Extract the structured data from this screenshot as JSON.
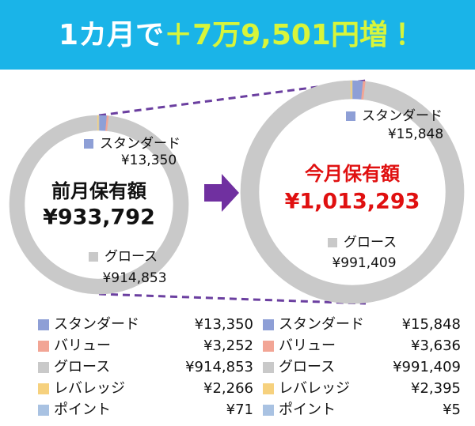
{
  "header": {
    "prefix": "1カ月で",
    "highlight": "＋7万9,501円増！"
  },
  "chart_data": [
    {
      "type": "donut",
      "title": "前月保有額",
      "total_label": "¥933,792",
      "categories": [
        "スタンダード",
        "バリュー",
        "グロース",
        "レバレッジ",
        "ポイント"
      ],
      "values": [
        13350,
        3252,
        914853,
        2266,
        71
      ],
      "value_labels": [
        "¥13,350",
        "¥3,252",
        "¥914,853",
        "¥2,266",
        "¥71"
      ],
      "colors": [
        "#8e9fd6",
        "#f2a595",
        "#c9c9c9",
        "#f6d17e",
        "#a9c2e2"
      ]
    },
    {
      "type": "donut",
      "title": "今月保有額",
      "total_label": "¥1,013,293",
      "categories": [
        "スタンダード",
        "バリュー",
        "グロース",
        "レバレッジ",
        "ポイント"
      ],
      "values": [
        15848,
        3636,
        991409,
        2395,
        5
      ],
      "value_labels": [
        "¥15,848",
        "¥3,636",
        "¥991,409",
        "¥2,395",
        "¥5"
      ],
      "colors": [
        "#8e9fd6",
        "#f2a595",
        "#c9c9c9",
        "#f6d17e",
        "#a9c2e2"
      ]
    }
  ]
}
